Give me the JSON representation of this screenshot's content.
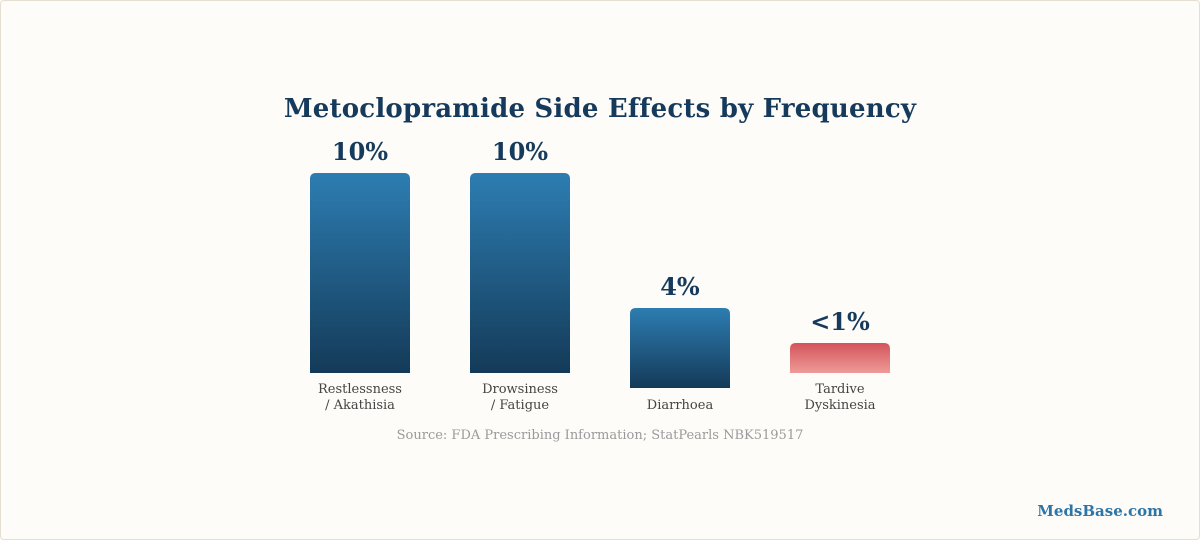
{
  "chart_data": {
    "type": "bar",
    "title": "Metoclopramide Side Effects by Frequency",
    "categories": [
      [
        "Restlessness",
        "/ Akathisia"
      ],
      [
        "Drowsiness",
        "/ Fatigue"
      ],
      [
        "Diarrhoea"
      ],
      [
        "Tardive",
        "Dyskinesia"
      ]
    ],
    "values": [
      10,
      10,
      4,
      1
    ],
    "value_labels": [
      "10%",
      "10%",
      "4%",
      "<1%"
    ],
    "colors": [
      "blue",
      "blue",
      "blue",
      "red"
    ],
    "palette": {
      "blue_top": "#2d7db2",
      "blue_bottom": "#143a58",
      "red_top": "#d2555a",
      "red_bottom": "#ee9a98"
    },
    "xlabel": "",
    "ylabel": "",
    "ylim": [
      0,
      10
    ],
    "grid": false
  },
  "source": "Source: FDA Prescribing Information; StatPearls NBK519517",
  "brand": "MedsBase.com",
  "colors": {
    "title": "#163a5c",
    "value_label": "#163a5c",
    "category_label": "#444444",
    "source": "#9a9a9a",
    "brand": "#2d75a6",
    "background": "#fdfcf9"
  }
}
